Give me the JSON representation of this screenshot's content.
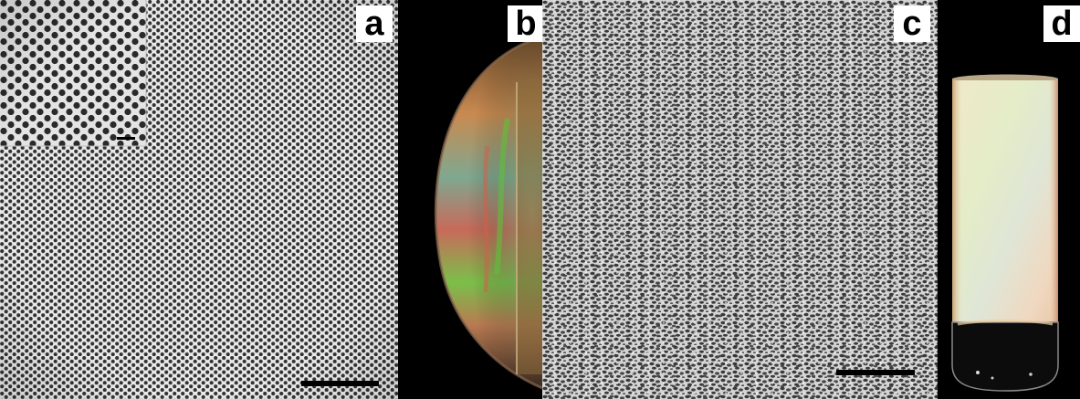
{
  "panels": {
    "a": {
      "label": "a"
    },
    "b": {
      "label": "b"
    },
    "c": {
      "label": "c"
    },
    "d": {
      "label": "d"
    }
  },
  "colors": {
    "panel_a_background": "#eaeaea",
    "panel_a_pores": "#2a2a2a",
    "panel_c_background": "#d0d0d0",
    "panel_c_pores": "#3a3a3a",
    "photo_background": "#000000",
    "label_background": "#ffffff",
    "scale_bar": "#000000"
  }
}
